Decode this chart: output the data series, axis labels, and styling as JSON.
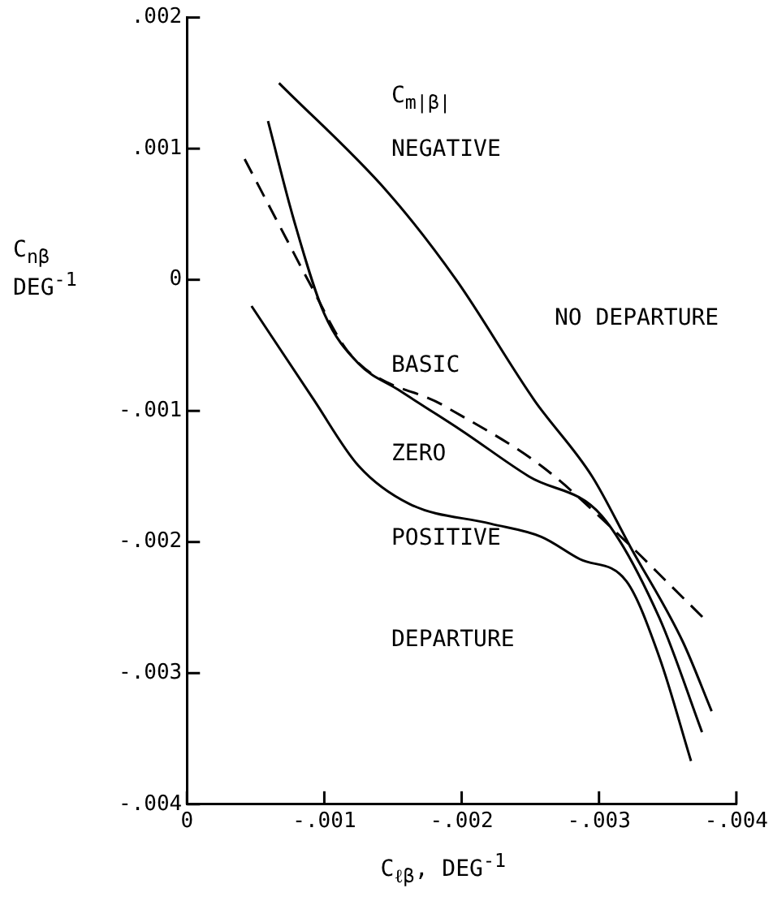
{
  "chart_data": {
    "type": "line",
    "xlabel": "C$_{ℓβ}$, DEG$^{-1}$",
    "ylabel": "C$_{nβ}$ DEG$^{-1}$",
    "legend_title": "C$_{m|β|}$",
    "xlim": [
      0,
      -0.004
    ],
    "xticks": [
      0,
      {
        "value": -0.001,
        "label": "-.001"
      },
      {
        "value": -0.002,
        "label": "-.002"
      },
      {
        "value": -0.003,
        "label": "-.003"
      },
      {
        "value": -0.004,
        "label": "-.004"
      }
    ],
    "ylim": [
      -0.004,
      0.002
    ],
    "yticks": [
      {
        "value": -0.004,
        "label": "-.004"
      },
      {
        "value": -0.003,
        "label": "-.003"
      },
      {
        "value": -0.002,
        "label": "-.002"
      },
      {
        "value": -0.001,
        "label": "-.001"
      },
      0,
      {
        "value": 0.001,
        "label": ".001"
      },
      {
        "value": 0.002,
        "label": ".002"
      }
    ],
    "grid": false,
    "legend": false,
    "series": [
      {
        "name": "NEGATIVE",
        "color": "#000000",
        "line_style": "solid",
        "x": [
          -0.00067,
          -0.00146,
          -0.00196,
          -0.00253,
          -0.00295,
          -0.00323,
          -0.00361,
          -0.00382
        ],
        "values": [
          0.0015,
          0.00067,
          0,
          -0.00092,
          -0.0015,
          -0.00204,
          -0.00276,
          -0.00329
        ]
      },
      {
        "name": "BASIC",
        "color": "#000000",
        "line_style": "dashed",
        "x": [
          -0.00042,
          -0.00072,
          -0.00088,
          -0.00119,
          -0.00187,
          -0.00258,
          -0.0032,
          -0.00352,
          -0.00379
        ],
        "values": [
          0.00092,
          0.00032,
          0,
          -0.00057,
          -0.00096,
          -0.00142,
          -0.002,
          -0.00233,
          -0.00261
        ]
      },
      {
        "name": "ZERO",
        "color": "#000000",
        "line_style": "solid",
        "x": [
          -0.00059,
          -0.00078,
          -0.001,
          -0.00125,
          -0.00154,
          -0.002,
          -0.00249,
          -0.00302,
          -0.00344,
          -0.00375
        ],
        "values": [
          0.00121,
          0.00045,
          -0.00026,
          -0.00064,
          -0.00084,
          -0.00115,
          -0.0015,
          -0.0018,
          -0.00258,
          -0.00345
        ]
      },
      {
        "name": "POSITIVE",
        "color": "#000000",
        "line_style": "solid",
        "x": [
          -0.00047,
          -0.00092,
          -0.00125,
          -0.00162,
          -0.00221,
          -0.00258,
          -0.00286,
          -0.0032,
          -0.00344,
          -0.00367
        ],
        "values": [
          -0.0002,
          -0.00091,
          -0.00142,
          -0.00171,
          -0.00186,
          -0.00196,
          -0.00213,
          -0.0023,
          -0.00288,
          -0.00367
        ]
      }
    ],
    "annotations": [
      "NO DEPARTURE",
      "DEPARTURE"
    ]
  }
}
